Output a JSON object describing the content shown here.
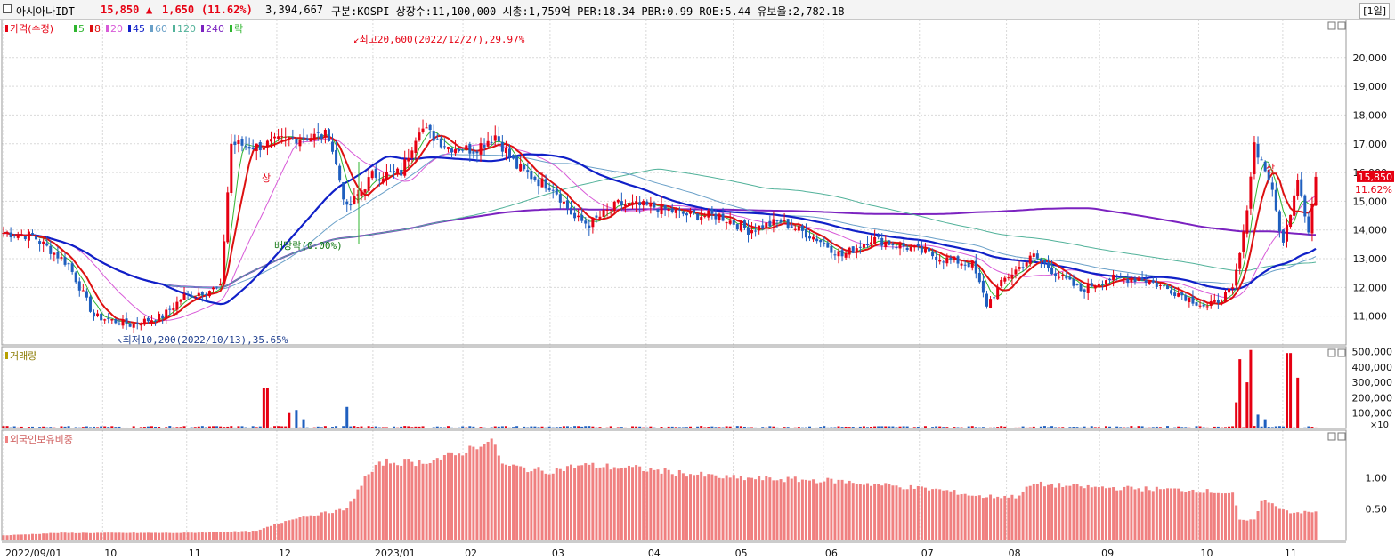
{
  "header": {
    "stock_name": "아시아나IDT",
    "price": "15,850",
    "change_arrow": "▲",
    "change": "1,650",
    "change_pct": "(11.62%)",
    "volume": "3,394,667",
    "info": "구분:KOSPI 상장수:11,100,000 시총:1,759억 PER:18.34 PBR:0.99 ROE:5.44 유보율:2,782.18",
    "period": "[1일]"
  },
  "colors": {
    "up": "#e60012",
    "down": "#1f5fbf",
    "ma5": "#2fb52f",
    "ma8": "#dd1111",
    "ma20": "#d85ad8",
    "ma45": "#1020c8",
    "ma60": "#6aa0c8",
    "ma120": "#52b29a",
    "ma240": "#7b22c0",
    "foreign": "#f08080"
  },
  "chart_data": [
    {
      "type": "candlestick",
      "title": "가격(수정)",
      "legend": [
        {
          "label": "가격(수정)",
          "color_key": "up"
        },
        {
          "label": "5",
          "color_key": "ma5"
        },
        {
          "label": "8",
          "color_key": "ma8"
        },
        {
          "label": "20",
          "color_key": "ma20"
        },
        {
          "label": "45",
          "color_key": "ma45"
        },
        {
          "label": "60",
          "color_key": "ma60"
        },
        {
          "label": "120",
          "color_key": "ma120"
        },
        {
          "label": "240",
          "color_key": "ma240"
        },
        {
          "label": "락",
          "color_key": "ma5"
        }
      ],
      "x_labels": [
        "2022/09/01",
        "10",
        "11",
        "12",
        "2023/01",
        "02",
        "03",
        "04",
        "05",
        "06",
        "07",
        "08",
        "09",
        "10",
        "11"
      ],
      "x_months": [
        {
          "label": "2022/09/01",
          "date": "2022-09-01"
        },
        {
          "label": "10",
          "date": "2022-10-04"
        },
        {
          "label": "11",
          "date": "2022-11-01"
        },
        {
          "label": "12",
          "date": "2022-12-01"
        },
        {
          "label": "2023/01",
          "date": "2023-01-02"
        },
        {
          "label": "02",
          "date": "2023-02-01"
        },
        {
          "label": "03",
          "date": "2023-03-02"
        },
        {
          "label": "04",
          "date": "2023-04-03"
        },
        {
          "label": "05",
          "date": "2023-05-02"
        },
        {
          "label": "06",
          "date": "2023-06-01"
        },
        {
          "label": "07",
          "date": "2023-07-03"
        },
        {
          "label": "08",
          "date": "2023-08-01"
        },
        {
          "label": "09",
          "date": "2023-09-01"
        },
        {
          "label": "10",
          "date": "2023-10-04"
        },
        {
          "label": "11",
          "date": "2023-11-01"
        }
      ],
      "y_ticks": [
        "11,000",
        "12,000",
        "13,000",
        "14,000",
        "15,000",
        "16,000",
        "17,000",
        "18,000",
        "19,000",
        "20,000"
      ],
      "y_tick_values": [
        11000,
        12000,
        13000,
        14000,
        15000,
        16000,
        17000,
        18000,
        19000,
        20000
      ],
      "ylim": [
        10000,
        21200
      ],
      "current_price_label": "15,850",
      "current_pct_label": "11.62%",
      "current_value": 15850,
      "annotations": {
        "high": "최고20,600(2022/12/27),29.97%",
        "low": "최저10,200(2022/10/13),35.65%",
        "dividend": "배당락(0.00%)",
        "up_marks": [
          "상",
          "상"
        ]
      },
      "anchors": [
        [
          0,
          13900
        ],
        [
          8,
          13800
        ],
        [
          18,
          12800
        ],
        [
          25,
          11000
        ],
        [
          35,
          10700
        ],
        [
          44,
          11000
        ],
        [
          50,
          11700
        ],
        [
          60,
          12000
        ],
        [
          63,
          17000
        ],
        [
          70,
          16900
        ],
        [
          80,
          17200
        ],
        [
          90,
          17300
        ],
        [
          95,
          14700
        ],
        [
          102,
          15900
        ],
        [
          110,
          16000
        ],
        [
          115,
          17600
        ],
        [
          123,
          16900
        ],
        [
          130,
          16800
        ],
        [
          136,
          17300
        ],
        [
          142,
          16200
        ],
        [
          148,
          15700
        ],
        [
          152,
          15500
        ],
        [
          158,
          14400
        ],
        [
          162,
          14200
        ],
        [
          170,
          14900
        ],
        [
          180,
          14800
        ],
        [
          190,
          14500
        ],
        [
          198,
          14500
        ],
        [
          206,
          14000
        ],
        [
          215,
          14300
        ],
        [
          225,
          13700
        ],
        [
          232,
          13100
        ],
        [
          240,
          13700
        ],
        [
          250,
          13400
        ],
        [
          260,
          13000
        ],
        [
          268,
          12800
        ],
        [
          272,
          11400
        ],
        [
          277,
          12300
        ],
        [
          285,
          13100
        ],
        [
          292,
          12400
        ],
        [
          298,
          11900
        ],
        [
          305,
          12300
        ],
        [
          315,
          12300
        ],
        [
          325,
          11800
        ],
        [
          333,
          11300
        ],
        [
          340,
          11900
        ],
        [
          343,
          13800
        ],
        [
          346,
          17000
        ],
        [
          350,
          15800
        ],
        [
          354,
          13500
        ],
        [
          358,
          15900
        ],
        [
          361,
          14000
        ],
        [
          363,
          15850
        ]
      ],
      "count": 364
    },
    {
      "type": "bar",
      "title": "거래량",
      "y_ticks": [
        "500,000",
        "400,000",
        "300,000",
        "200,000",
        "100,000"
      ],
      "y_tick_values": [
        500000,
        400000,
        300000,
        200000,
        100000
      ],
      "unit_label": "×10",
      "ylim": [
        0,
        520000
      ],
      "spikes": [
        [
          72,
          260000
        ],
        [
          73,
          260000
        ],
        [
          79,
          100000
        ],
        [
          81,
          120000
        ],
        [
          83,
          60000
        ],
        [
          95,
          140000
        ],
        [
          341,
          170000
        ],
        [
          342,
          450000
        ],
        [
          344,
          300000
        ],
        [
          345,
          510000
        ],
        [
          347,
          90000
        ],
        [
          349,
          60000
        ],
        [
          355,
          490000
        ],
        [
          356,
          490000
        ],
        [
          358,
          330000
        ]
      ],
      "baseline_value": 12000
    },
    {
      "type": "bar",
      "title": "외국인보유비중",
      "y_ticks": [
        "1.00",
        "0.50"
      ],
      "y_tick_values": [
        1.0,
        0.5
      ],
      "ylim": [
        0,
        1.7
      ],
      "anchors": [
        [
          0,
          0.08
        ],
        [
          15,
          0.12
        ],
        [
          30,
          0.12
        ],
        [
          50,
          0.12
        ],
        [
          70,
          0.15
        ],
        [
          80,
          0.35
        ],
        [
          95,
          0.5
        ],
        [
          100,
          1.0
        ],
        [
          105,
          1.25
        ],
        [
          115,
          1.25
        ],
        [
          125,
          1.35
        ],
        [
          132,
          1.55
        ],
        [
          136,
          1.55
        ],
        [
          138,
          1.2
        ],
        [
          150,
          1.1
        ],
        [
          160,
          1.2
        ],
        [
          175,
          1.15
        ],
        [
          200,
          1.0
        ],
        [
          230,
          0.95
        ],
        [
          260,
          0.8
        ],
        [
          270,
          0.7
        ],
        [
          280,
          0.7
        ],
        [
          285,
          0.9
        ],
        [
          300,
          0.85
        ],
        [
          330,
          0.8
        ],
        [
          340,
          0.75
        ],
        [
          342,
          0.32
        ],
        [
          346,
          0.32
        ],
        [
          348,
          0.65
        ],
        [
          352,
          0.55
        ],
        [
          356,
          0.45
        ],
        [
          363,
          0.45
        ]
      ],
      "count": 364
    }
  ]
}
